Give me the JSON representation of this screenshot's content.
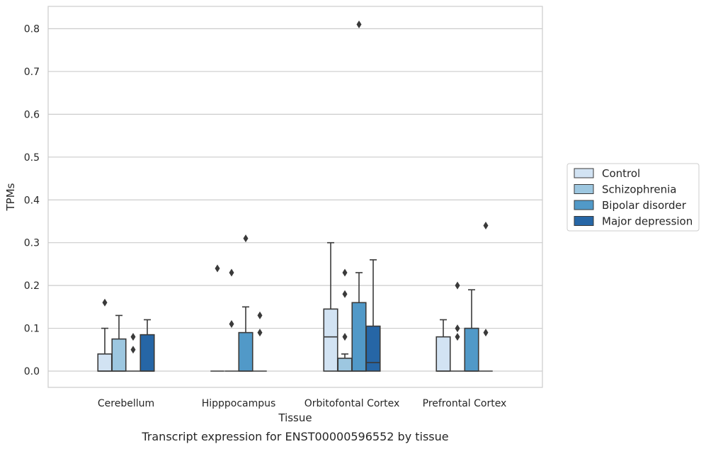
{
  "chart_data": {
    "type": "box",
    "xlabel": "Tissue",
    "ylabel": "TPMs",
    "caption": "Transcript expression for ENST00000596552 by tissue",
    "ylim": [
      -0.04,
      0.85
    ],
    "yticks": [
      "0.0",
      "0.1",
      "0.2",
      "0.3",
      "0.4",
      "0.5",
      "0.6",
      "0.7",
      "0.8"
    ],
    "grid": true,
    "legend_position": "right",
    "categories": [
      "Cerebellum",
      "Hipppocampus",
      "Orbitofontal Cortex",
      "Prefrontal Cortex"
    ],
    "series": [
      {
        "name": "Control",
        "color": "#d2e3f3",
        "boxes": [
          {
            "q1": 0.0,
            "median": 0.0,
            "q3": 0.04,
            "whisker_low": 0.0,
            "whisker_high": 0.1,
            "outliers": [
              0.16
            ]
          },
          {
            "q1": 0.0,
            "median": 0.0,
            "q3": 0.0,
            "whisker_low": 0.0,
            "whisker_high": 0.0,
            "outliers": [
              0.24
            ]
          },
          {
            "q1": 0.0,
            "median": 0.08,
            "q3": 0.145,
            "whisker_low": 0.0,
            "whisker_high": 0.3,
            "outliers": []
          },
          {
            "q1": 0.0,
            "median": 0.0,
            "q3": 0.08,
            "whisker_low": 0.0,
            "whisker_high": 0.12,
            "outliers": []
          }
        ]
      },
      {
        "name": "Schizophrenia",
        "color": "#9dc7e0",
        "boxes": [
          {
            "q1": 0.0,
            "median": 0.0,
            "q3": 0.075,
            "whisker_low": 0.0,
            "whisker_high": 0.13,
            "outliers": []
          },
          {
            "q1": 0.0,
            "median": 0.0,
            "q3": 0.0,
            "whisker_low": 0.0,
            "whisker_high": 0.0,
            "outliers": [
              0.23,
              0.11
            ]
          },
          {
            "q1": 0.0,
            "median": 0.0,
            "q3": 0.03,
            "whisker_low": 0.0,
            "whisker_high": 0.04,
            "outliers": [
              0.23,
              0.18,
              0.08
            ]
          },
          {
            "q1": 0.0,
            "median": 0.0,
            "q3": 0.0,
            "whisker_low": 0.0,
            "whisker_high": 0.0,
            "outliers": [
              0.2,
              0.1,
              0.08
            ]
          }
        ]
      },
      {
        "name": "Bipolar disorder",
        "color": "#5199c8",
        "boxes": [
          {
            "q1": 0.0,
            "median": 0.0,
            "q3": 0.0,
            "whisker_low": 0.0,
            "whisker_high": 0.0,
            "outliers": [
              0.08,
              0.05
            ]
          },
          {
            "q1": 0.0,
            "median": 0.0,
            "q3": 0.09,
            "whisker_low": 0.0,
            "whisker_high": 0.15,
            "outliers": [
              0.31
            ]
          },
          {
            "q1": 0.0,
            "median": 0.0,
            "q3": 0.16,
            "whisker_low": 0.0,
            "whisker_high": 0.23,
            "outliers": [
              0.81
            ]
          },
          {
            "q1": 0.0,
            "median": 0.0,
            "q3": 0.1,
            "whisker_low": 0.0,
            "whisker_high": 0.19,
            "outliers": []
          }
        ]
      },
      {
        "name": "Major depression",
        "color": "#2666a6",
        "boxes": [
          {
            "q1": 0.0,
            "median": 0.0,
            "q3": 0.085,
            "whisker_low": 0.0,
            "whisker_high": 0.12,
            "outliers": []
          },
          {
            "q1": 0.0,
            "median": 0.0,
            "q3": 0.0,
            "whisker_low": 0.0,
            "whisker_high": 0.0,
            "outliers": [
              0.13,
              0.09
            ]
          },
          {
            "q1": 0.0,
            "median": 0.02,
            "q3": 0.105,
            "whisker_low": 0.0,
            "whisker_high": 0.26,
            "outliers": []
          },
          {
            "q1": 0.0,
            "median": 0.0,
            "q3": 0.0,
            "whisker_low": 0.0,
            "whisker_high": 0.0,
            "outliers": [
              0.34,
              0.09
            ]
          }
        ]
      }
    ]
  }
}
